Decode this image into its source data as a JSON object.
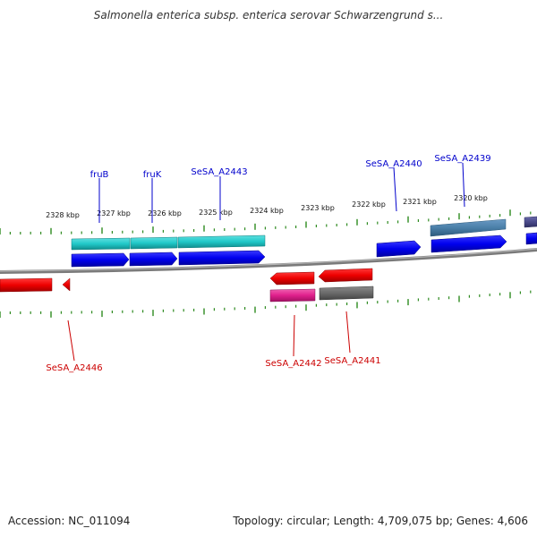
{
  "title": "Salmonella enterica subsp. enterica serovar Schwarzengrund s...",
  "footer": {
    "accession": "Accession: NC_011094",
    "stats": "Topology: circular; Length: 4,709,075 bp; Genes: 4,606"
  },
  "kbp_labels": [
    "2328 kbp",
    "2327 kbp",
    "2326 kbp",
    "2325 kbp",
    "2324 kbp",
    "2323 kbp",
    "2322 kbp",
    "2321 kbp",
    "2320 kbp"
  ],
  "genes": {
    "fruB": "fruB",
    "fruK": "fruK",
    "A2443": "SeSA_A2443",
    "A2440": "SeSA_A2440",
    "A2439": "SeSA_A2439",
    "A2446": "SeSA_A2446",
    "A2442": "SeSA_A2442",
    "A2441": "SeSA_A2441"
  },
  "colors": {
    "forward_gene": "#0000ee",
    "reverse_gene": "#ee0000",
    "cyan_feature": "#20c8c8",
    "steel_feature": "#4a7fa8",
    "slate_feature": "#4a4a8a",
    "pink_feature": "#e0208c",
    "gray_feature": "#6a6a6a",
    "tick": "#2e8b20",
    "backbone": "#8c8c8c"
  }
}
